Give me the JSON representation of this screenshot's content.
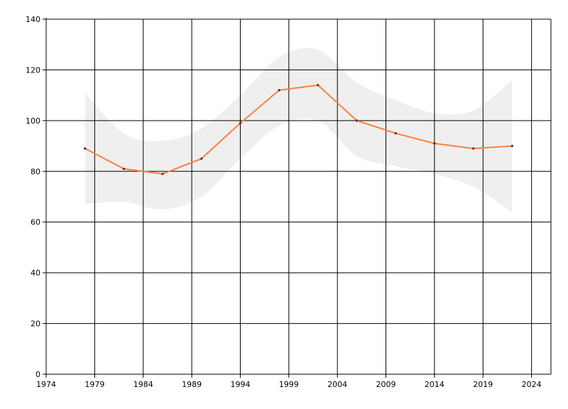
{
  "chart_data": {
    "type": "line",
    "title": "",
    "xlabel": "",
    "ylabel": "",
    "xlim": [
      1974,
      2026
    ],
    "ylim": [
      0,
      140
    ],
    "x_ticks": [
      1974,
      1979,
      1984,
      1989,
      1994,
      1999,
      2004,
      2009,
      2014,
      2019,
      2024
    ],
    "y_ticks": [
      0,
      20,
      40,
      60,
      80,
      100,
      120,
      140
    ],
    "grid": true,
    "legend": "none",
    "series": [
      {
        "x": [
          1978,
          1982,
          1986,
          1990,
          1994,
          1998,
          2002,
          2006,
          2010,
          2014,
          2018,
          2022
        ],
        "y": [
          89,
          81,
          79,
          85,
          99,
          112,
          114,
          100,
          95,
          91,
          89,
          90
        ],
        "color": "#ff7f3f",
        "band_upper": [
          111,
          95,
          92,
          97,
          110,
          125,
          128,
          115,
          108,
          103,
          104,
          116
        ],
        "band_lower": [
          67,
          68,
          65,
          70,
          85,
          98,
          100,
          86,
          82,
          79,
          74,
          64
        ],
        "band_color": "#efefef"
      }
    ]
  }
}
